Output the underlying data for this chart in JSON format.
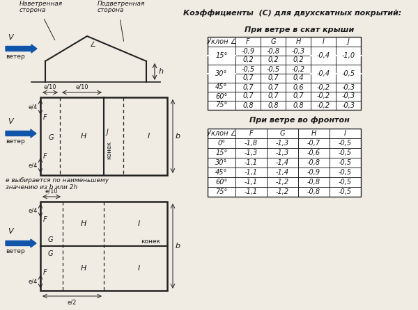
{
  "title": "Коэффициенты  (C) для двухскатных покрытий:",
  "table1_title": "При ветре в скат крыши",
  "table2_title": "При ветре во фронтон",
  "table1_headers": [
    "Уклон ∠",
    "F",
    "G",
    "H",
    "I",
    "J"
  ],
  "table2_headers": [
    "Уклон ∠",
    "F",
    "G",
    "H",
    "I"
  ],
  "table1_data": [
    [
      "-0,9",
      "-0,8",
      "-0,3",
      "-0,4",
      "-1,0"
    ],
    [
      "0,2",
      "0,2",
      "0,2",
      "",
      ""
    ],
    [
      "-0,5",
      "-0,5",
      "-0,2",
      "-0,4",
      "-0,5"
    ],
    [
      "0,7",
      "0,7",
      "0,4",
      "",
      ""
    ],
    [
      "0,7",
      "0,7",
      "0,6",
      "-0,2",
      "-0,3"
    ],
    [
      "0,7",
      "0,7",
      "0,7",
      "-0,2",
      "-0,3"
    ],
    [
      "0,8",
      "0,8",
      "0,8",
      "-0,2",
      "-0,3"
    ]
  ],
  "table1_angle_labels": [
    "15°",
    "",
    "30°",
    "",
    "45°",
    "60°",
    "75°"
  ],
  "table1_merged_rows": [
    [
      0,
      1
    ],
    [
      2,
      3
    ]
  ],
  "table2_data": [
    [
      "0°",
      "-1,8",
      "-1,3",
      "-0,7",
      "-0,5"
    ],
    [
      "15°",
      "-1,3",
      "-1,3",
      "-0,6",
      "-0,5"
    ],
    [
      "30°",
      "-1,1",
      "-1,4",
      "-0,8",
      "-0,5"
    ],
    [
      "45°",
      "-1,1",
      "-1,4",
      "-0,9",
      "-0,5"
    ],
    [
      "60°",
      "-1,1",
      "-1,2",
      "-0,8",
      "-0,5"
    ],
    [
      "75°",
      "-1,1",
      "-1,2",
      "-0,8",
      "-0,5"
    ]
  ],
  "bg_color": "#f0ece4",
  "text_color": "#1a1a1a",
  "arrow_color": "#1155aa",
  "line_color": "#222222"
}
